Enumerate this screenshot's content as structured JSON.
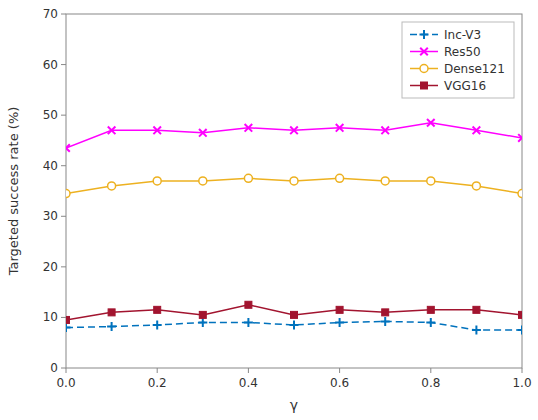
{
  "chart_data": {
    "type": "line",
    "x_label": "γ",
    "y_label": "Targeted success rate (%)",
    "x": [
      0,
      0.1,
      0.2,
      0.3,
      0.4,
      0.5,
      0.6,
      0.7,
      0.8,
      0.9,
      1.0
    ],
    "series": [
      {
        "name": "Inc-V3",
        "color": "#0072BD",
        "marker": "plus",
        "line_style": "dashed",
        "values": [
          8.0,
          8.2,
          8.5,
          9.0,
          9.0,
          8.5,
          9.0,
          9.2,
          9.0,
          7.5,
          7.5
        ]
      },
      {
        "name": "Res50",
        "color": "#FF00FF",
        "marker": "x",
        "line_style": "solid",
        "values": [
          43.5,
          47.0,
          47.0,
          46.5,
          47.5,
          47.0,
          47.5,
          47.0,
          48.5,
          47.0,
          45.5
        ]
      },
      {
        "name": "Dense121",
        "color": "#EDB120",
        "marker": "circle",
        "line_style": "solid",
        "values": [
          34.5,
          36.0,
          37.0,
          37.0,
          37.5,
          37.0,
          37.5,
          37.0,
          37.0,
          36.0,
          34.5
        ]
      },
      {
        "name": "VGG16",
        "color": "#A2142F",
        "marker": "square",
        "line_style": "solid",
        "values": [
          9.5,
          11.0,
          11.5,
          10.5,
          12.5,
          10.5,
          11.5,
          11.0,
          11.5,
          11.5,
          10.5
        ]
      }
    ],
    "xlim": [
      0,
      1
    ],
    "xticks": [
      {
        "value": 0,
        "label": "0.0"
      },
      0.2,
      0.4,
      0.6,
      0.8,
      {
        "value": 1,
        "label": "1.0"
      }
    ],
    "ylim": [
      0,
      70
    ],
    "yticks": [
      0,
      10,
      20,
      30,
      40,
      50,
      60,
      70
    ],
    "grid": false,
    "legend": "upper right"
  }
}
